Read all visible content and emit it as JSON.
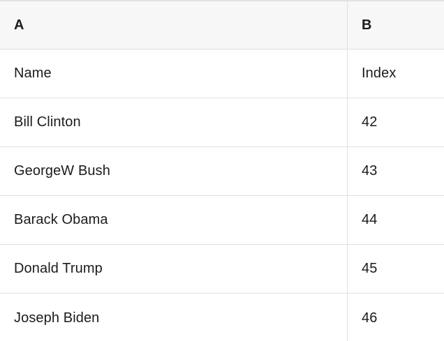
{
  "table": {
    "columns": [
      {
        "id": "A",
        "label": "A"
      },
      {
        "id": "B",
        "label": "B"
      }
    ],
    "rows": [
      {
        "a": "Name",
        "b": "Index"
      },
      {
        "a": "Bill Clinton",
        "b": "42"
      },
      {
        "a": "GeorgeW Bush",
        "b": "43"
      },
      {
        "a": "Barack Obama",
        "b": "44"
      },
      {
        "a": "Donald Trump",
        "b": "45"
      },
      {
        "a": "Joseph Biden",
        "b": "46"
      }
    ]
  },
  "colors": {
    "header_bg": "#f7f7f8",
    "border": "#e0e0e0",
    "text": "#1b1b1b",
    "background": "#ffffff"
  }
}
